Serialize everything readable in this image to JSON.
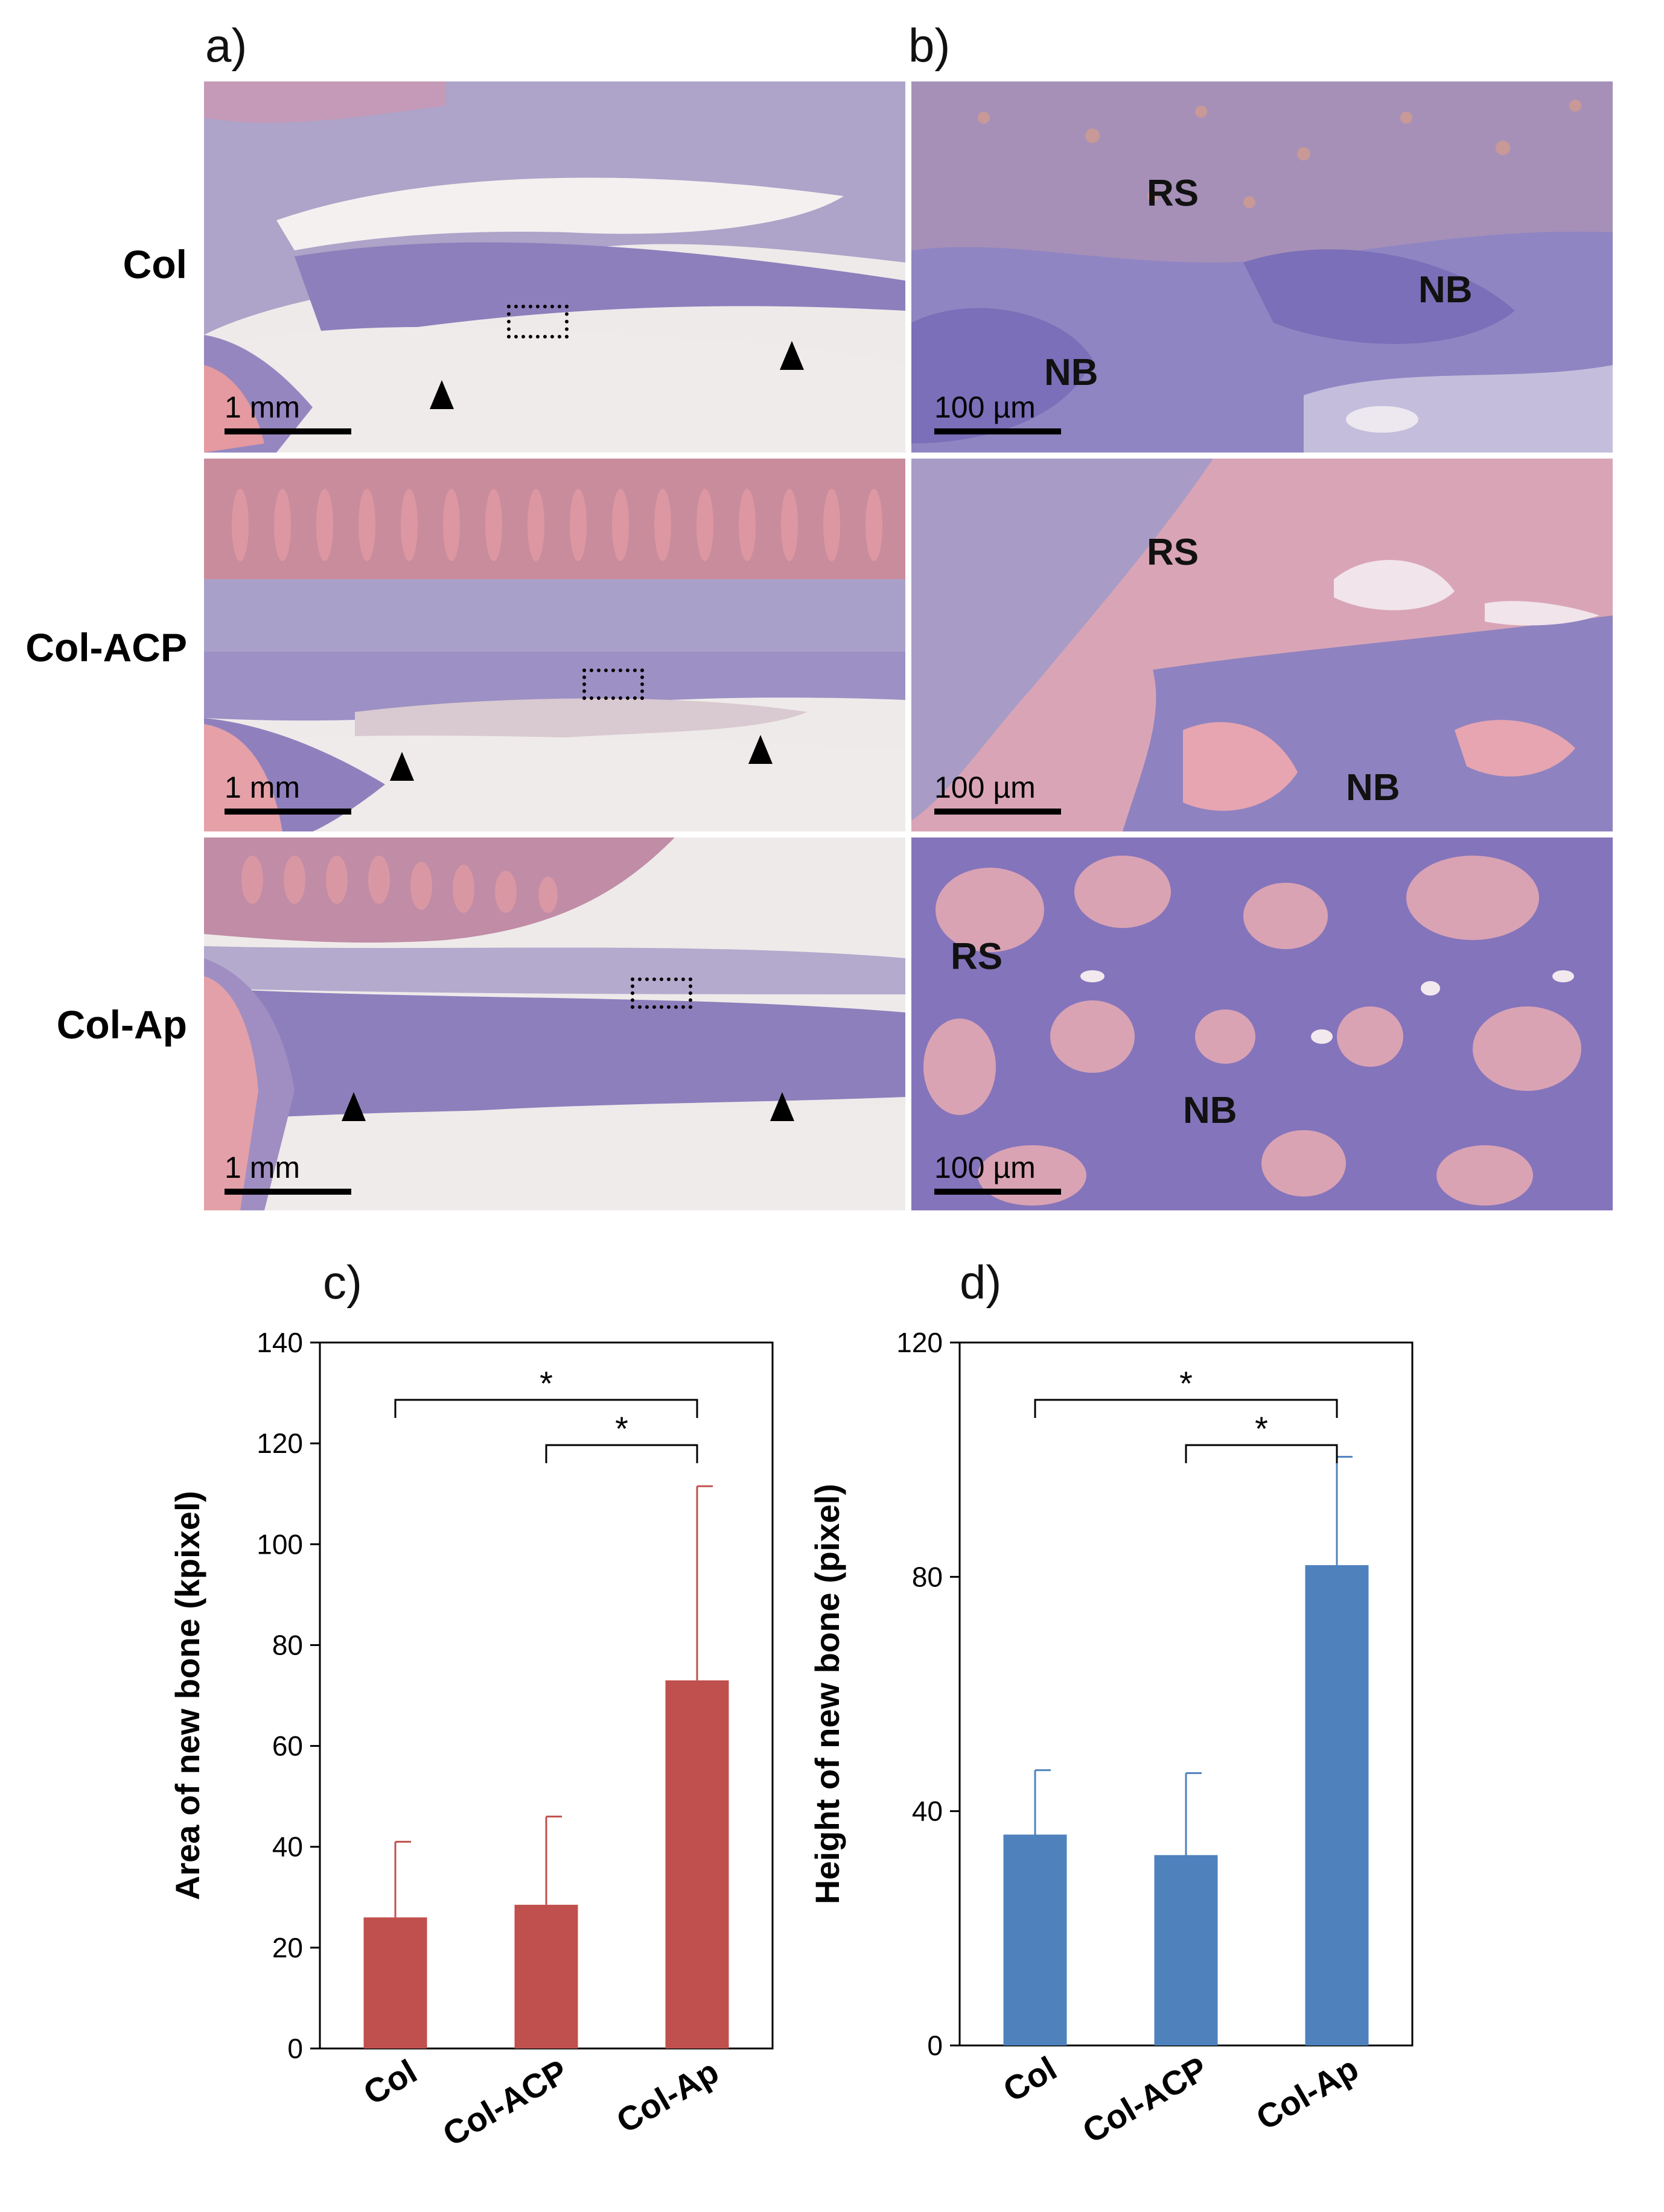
{
  "figure": {
    "panels": {
      "a": "a)",
      "b": "b)",
      "c": "c)",
      "d": "d)"
    },
    "rows": [
      "Col",
      "Col-ACP",
      "Col-Ap"
    ],
    "scale_a": "1 mm",
    "scale_b": "100 µm",
    "labels": {
      "rs": "RS",
      "nb": "NB"
    }
  },
  "chart_data": [
    {
      "type": "bar",
      "panel": "c)",
      "categories": [
        "Col",
        "Col-ACP",
        "Col-Ap"
      ],
      "series": [
        {
          "values": [
            26,
            28.5,
            73
          ],
          "errors": [
            15,
            17.5,
            38.5
          ],
          "color": "#c0504d"
        }
      ],
      "ylabel": "Area of new bone (kpixel)",
      "ylim": [
        0,
        140
      ],
      "yticks": [
        0,
        20,
        40,
        60,
        80,
        100,
        120,
        140
      ],
      "significance": [
        {
          "from": "Col",
          "to": "Col-Ap",
          "label": "*"
        },
        {
          "from": "Col-ACP",
          "to": "Col-Ap",
          "label": "*"
        }
      ]
    },
    {
      "type": "bar",
      "panel": "d)",
      "categories": [
        "Col",
        "Col-ACP",
        "Col-Ap"
      ],
      "series": [
        {
          "values": [
            36,
            32.5,
            82
          ],
          "errors": [
            11,
            14,
            18.5
          ],
          "color": "#4f81bd"
        }
      ],
      "ylabel": "Height of new bone (pixel)",
      "ylim": [
        0,
        120
      ],
      "yticks": [
        0,
        40,
        80,
        120
      ],
      "significance": [
        {
          "from": "Col",
          "to": "Col-Ap",
          "label": "*"
        },
        {
          "from": "Col-ACP",
          "to": "Col-Ap",
          "label": "*"
        }
      ]
    }
  ]
}
